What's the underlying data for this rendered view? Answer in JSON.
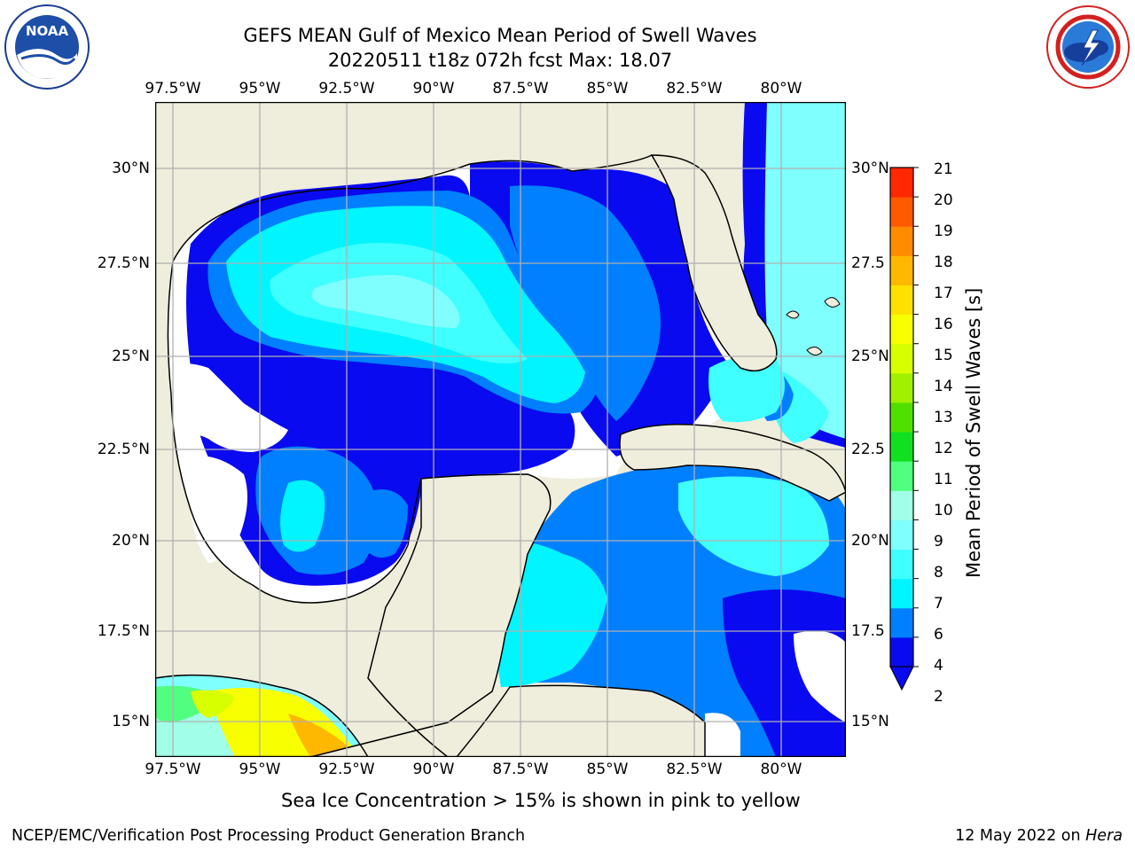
{
  "header": {
    "title_line1": "GEFS MEAN Gulf of Mexico Mean Period of Swell Waves",
    "title_line2": "20220511 t18z 072h fcst   Max: 18.07"
  },
  "logos": {
    "left": {
      "name": "noaa-logo",
      "text": "NOAA",
      "ring_text": "NATIONAL OCEANIC AND ATMOSPHERIC ADMINISTRATION • U.S. DEPARTMENT OF COMMERCE"
    },
    "right": {
      "name": "nws-logo",
      "ring_text": "NATIONAL WEATHER SERVICE"
    }
  },
  "map": {
    "lon_labels": [
      "97.5°W",
      "95°W",
      "92.5°W",
      "90°W",
      "87.5°W",
      "85°W",
      "82.5°W",
      "80°W"
    ],
    "lat_labels_left": [
      "30°N",
      "27.5°N",
      "25°N",
      "22.5°N",
      "20°N",
      "17.5°N",
      "15°N"
    ],
    "lat_labels_right": [
      "30°N",
      "27.5",
      "25°N",
      "22.5",
      "20°N",
      "17.5",
      "15°N"
    ],
    "colors": {
      "land": "#efeddc",
      "coastline": "#000000",
      "grid": "#b0b0b0",
      "no_data": "#ffffff"
    }
  },
  "colorbar": {
    "label": "Mean Period of Swell Waves [s]",
    "ticks": [
      "21",
      "20",
      "19",
      "18",
      "17",
      "16",
      "15",
      "14",
      "13",
      "12",
      "11",
      "10",
      "9",
      "8",
      "7",
      "6",
      "4",
      "2"
    ],
    "levels": [
      2,
      4,
      6,
      7,
      8,
      9,
      10,
      11,
      12,
      13,
      14,
      15,
      16,
      17,
      18,
      19,
      20,
      21
    ],
    "colors": [
      "#0a0af0",
      "#0080ff",
      "#00f5ff",
      "#40ffff",
      "#80ffff",
      "#a0ffe6",
      "#50ff80",
      "#10e020",
      "#50e000",
      "#a0f000",
      "#d8ff00",
      "#f8ff00",
      "#ffe000",
      "#ffb800",
      "#ff8c00",
      "#ff5a00",
      "#ff2800",
      "#ff0000"
    ],
    "extend": "min"
  },
  "note": "Sea Ice Concentration > 15% is shown in pink to yellow",
  "footer": {
    "left": "NCEP/EMC/Verification Post Processing Product Generation Branch",
    "right_prefix": "12 May 2022 on ",
    "right_machine": "Hera"
  }
}
